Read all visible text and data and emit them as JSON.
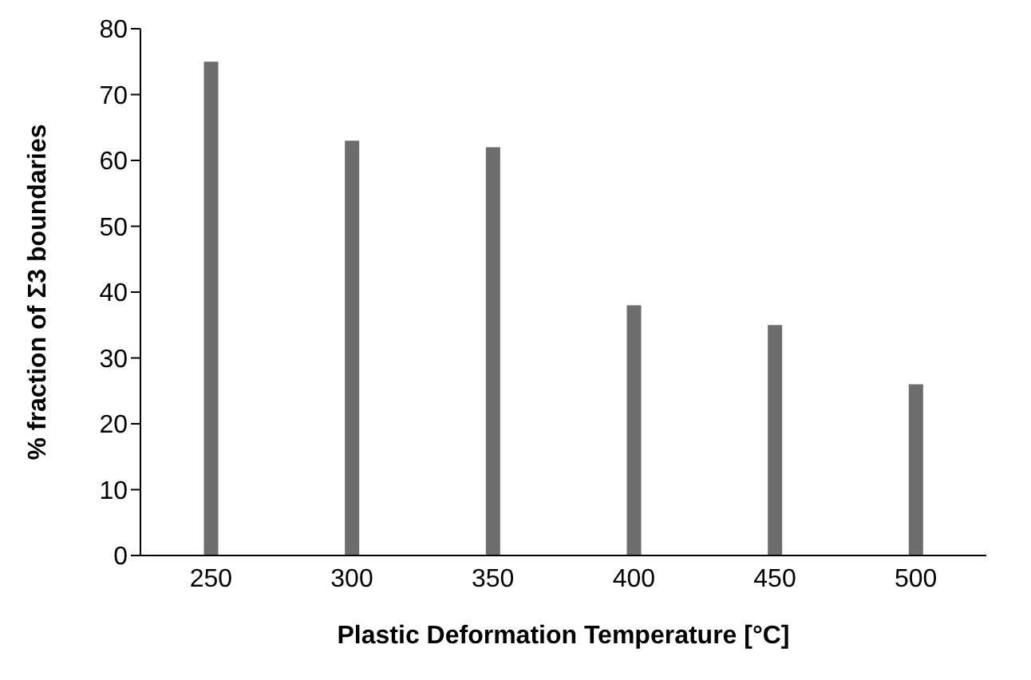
{
  "chart_data": {
    "type": "bar",
    "xlabel": "Plastic Deformation Temperature [°C]",
    "ylabel": "% fraction of Σ3 boundaries",
    "categories": [
      "250",
      "300",
      "350",
      "400",
      "450",
      "500"
    ],
    "values": [
      75,
      63,
      62,
      38,
      35,
      26
    ],
    "color": "#6d6d6d",
    "ylim": [
      0,
      80
    ],
    "yticks": [
      0,
      10,
      20,
      30,
      40,
      50,
      60,
      70,
      80
    ],
    "grid": false
  }
}
